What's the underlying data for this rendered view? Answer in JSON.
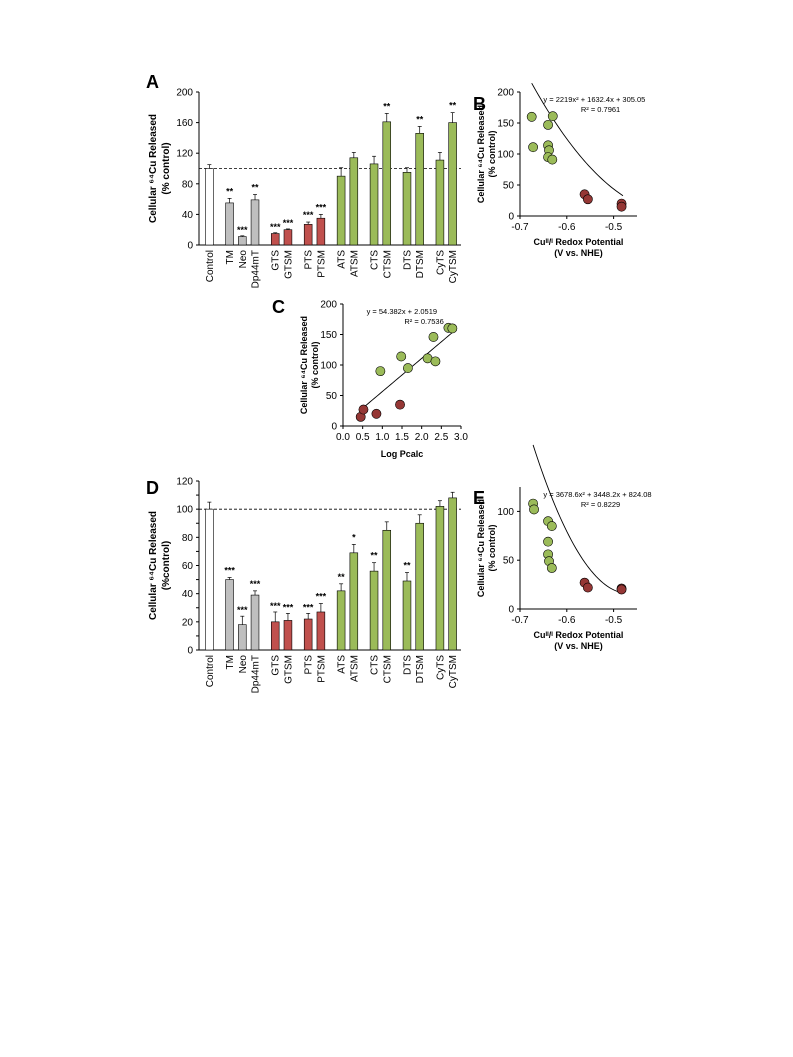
{
  "colors": {
    "gray": "#bfbfbf",
    "red": "#c0504d",
    "green": "#9bbb59",
    "white": "#ffffff",
    "stroke": "#000000",
    "red_point": "#953735",
    "green_point": "#9bbb59"
  },
  "panels": {
    "A": {
      "letter": "A",
      "ylabel_lines": [
        "Cellular ⁶⁴Cu Released",
        "(% control)"
      ]
    },
    "B": {
      "letter": "B",
      "ylabel_lines": [
        "Cellular ⁶⁴Cu Released",
        "(% control)"
      ],
      "xlabel_lines": [
        "Cuᴵᴵ/ᴵ Redox Potential",
        "(V vs. NHE)"
      ],
      "equation": "y = 2219x² + 1632.4x + 305.05",
      "r2": "R² = 0.7961"
    },
    "C": {
      "letter": "C",
      "ylabel_lines": [
        "Cellular ⁶⁴Cu Released",
        "(% control)"
      ],
      "xlabel": "Log Pcalc",
      "equation": "y = 54.382x + 2.0519",
      "r2": "R² = 0.7536"
    },
    "D": {
      "letter": "D",
      "ylabel_lines": [
        "Cellular ⁶⁴Cu Released",
        "(%control)"
      ]
    },
    "E": {
      "letter": "E",
      "ylabel_lines": [
        "Cellular ⁶⁴Cu Released",
        "(% control)"
      ],
      "xlabel_lines": [
        "Cuᴵᴵ/ᴵ Redox Potential",
        "(V vs. NHE)"
      ],
      "equation": "y = 3678.6x² + 3448.2x + 824.08",
      "r2": "R² = 0.8229"
    }
  },
  "chart_data": [
    {
      "panel": "A",
      "type": "bar",
      "ylim": [
        0,
        200
      ],
      "yticks": [
        0,
        40,
        80,
        120,
        160,
        200
      ],
      "reference_line": 100,
      "categories": [
        "Control",
        "TM",
        "Neo",
        "Dp44mT",
        "GTS",
        "GTSM",
        "PTS",
        "PTSM",
        "ATS",
        "ATSM",
        "CTS",
        "CTSM",
        "DTS",
        "DTSM",
        "CyTS",
        "CyTSM"
      ],
      "values": [
        100,
        55,
        11,
        59,
        15,
        20,
        27,
        35,
        90,
        114,
        106,
        161,
        95,
        146,
        111,
        160
      ],
      "errors": [
        5,
        6,
        1,
        7,
        1,
        1,
        3,
        5,
        11,
        7,
        10,
        11,
        6,
        9,
        10,
        13
      ],
      "groups": [
        "white",
        "gray",
        "gray",
        "gray",
        "red",
        "red",
        "red",
        "red",
        "green",
        "green",
        "green",
        "green",
        "green",
        "green",
        "green",
        "green"
      ],
      "significance": [
        "",
        "**",
        "***",
        "**",
        "***",
        "***",
        "***",
        "***",
        "",
        "",
        "",
        "**",
        "",
        "**",
        "",
        "**"
      ]
    },
    {
      "panel": "B",
      "type": "scatter",
      "xlim": [
        -0.7,
        -0.45
      ],
      "xticks": [
        -0.7,
        -0.6,
        -0.5
      ],
      "ylim": [
        0,
        200
      ],
      "yticks": [
        0,
        50,
        100,
        150,
        200
      ],
      "points": [
        {
          "x": -0.675,
          "y": 160,
          "group": "green"
        },
        {
          "x": -0.672,
          "y": 111,
          "group": "green"
        },
        {
          "x": -0.64,
          "y": 147,
          "group": "green"
        },
        {
          "x": -0.63,
          "y": 161,
          "group": "green"
        },
        {
          "x": -0.64,
          "y": 114,
          "group": "green"
        },
        {
          "x": -0.638,
          "y": 106,
          "group": "green"
        },
        {
          "x": -0.64,
          "y": 95,
          "group": "green"
        },
        {
          "x": -0.631,
          "y": 91,
          "group": "green"
        },
        {
          "x": -0.562,
          "y": 35,
          "group": "red"
        },
        {
          "x": -0.555,
          "y": 27,
          "group": "red"
        },
        {
          "x": -0.483,
          "y": 20,
          "group": "red"
        },
        {
          "x": -0.483,
          "y": 15,
          "group": "red"
        }
      ],
      "fit": {
        "kind": "poly2",
        "a": 2219,
        "b": 1632.4,
        "c": 305.05,
        "xrange": [
          -0.675,
          -0.48
        ]
      }
    },
    {
      "panel": "C",
      "type": "scatter",
      "xlim": [
        0,
        3
      ],
      "xticks": [
        0.0,
        0.5,
        1.0,
        1.5,
        2.0,
        2.5,
        3.0
      ],
      "ylim": [
        0,
        200
      ],
      "yticks": [
        0,
        50,
        100,
        150,
        200
      ],
      "points": [
        {
          "x": 0.95,
          "y": 90,
          "group": "green"
        },
        {
          "x": 1.48,
          "y": 114,
          "group": "green"
        },
        {
          "x": 1.65,
          "y": 95,
          "group": "green"
        },
        {
          "x": 2.15,
          "y": 111,
          "group": "green"
        },
        {
          "x": 2.3,
          "y": 146,
          "group": "green"
        },
        {
          "x": 2.35,
          "y": 106,
          "group": "green"
        },
        {
          "x": 2.68,
          "y": 161,
          "group": "green"
        },
        {
          "x": 2.78,
          "y": 160,
          "group": "green"
        },
        {
          "x": 0.45,
          "y": 15,
          "group": "red"
        },
        {
          "x": 0.52,
          "y": 27,
          "group": "red"
        },
        {
          "x": 0.85,
          "y": 20,
          "group": "red"
        },
        {
          "x": 1.45,
          "y": 35,
          "group": "red"
        }
      ],
      "fit": {
        "kind": "linear",
        "m": 54.382,
        "b": 2.0519,
        "xrange": [
          0.45,
          2.8
        ]
      }
    },
    {
      "panel": "D",
      "type": "bar",
      "ylim": [
        0,
        120
      ],
      "yticks": [
        0,
        10,
        20,
        30,
        40,
        50,
        60,
        70,
        80,
        90,
        100,
        110,
        120
      ],
      "ytick_labels": [
        0,
        20,
        40,
        60,
        80,
        100,
        120
      ],
      "reference_line": 100,
      "categories": [
        "Control",
        "TM",
        "Neo",
        "Dp44mT",
        "GTS",
        "GTSM",
        "PTS",
        "PTSM",
        "ATS",
        "ATSM",
        "CTS",
        "CTSM",
        "DTS",
        "DTSM",
        "CyTS",
        "CyTSM"
      ],
      "values": [
        100,
        50,
        18,
        39,
        20,
        21,
        22,
        27,
        42,
        69,
        56,
        85,
        49,
        90,
        102,
        108
      ],
      "errors": [
        5,
        1.5,
        6,
        3,
        7,
        5,
        4,
        6,
        5,
        6,
        6,
        6,
        6,
        6,
        4,
        4
      ],
      "groups": [
        "white",
        "gray",
        "gray",
        "gray",
        "red",
        "red",
        "red",
        "red",
        "green",
        "green",
        "green",
        "green",
        "green",
        "green",
        "green",
        "green"
      ],
      "significance": [
        "",
        "***",
        "***",
        "***",
        "***",
        "***",
        "***",
        "***",
        "**",
        "*",
        "**",
        "",
        "**",
        "",
        "",
        ""
      ]
    },
    {
      "panel": "E",
      "type": "scatter",
      "xlim": [
        -0.7,
        -0.45
      ],
      "xticks": [
        -0.7,
        -0.6,
        -0.5
      ],
      "ylim": [
        0,
        125
      ],
      "yticks": [
        0,
        50,
        100
      ],
      "points": [
        {
          "x": -0.672,
          "y": 108,
          "group": "green"
        },
        {
          "x": -0.67,
          "y": 102,
          "group": "green"
        },
        {
          "x": -0.64,
          "y": 90,
          "group": "green"
        },
        {
          "x": -0.632,
          "y": 85,
          "group": "green"
        },
        {
          "x": -0.64,
          "y": 69,
          "group": "green"
        },
        {
          "x": -0.64,
          "y": 56,
          "group": "green"
        },
        {
          "x": -0.638,
          "y": 49,
          "group": "green"
        },
        {
          "x": -0.632,
          "y": 42,
          "group": "green"
        },
        {
          "x": -0.562,
          "y": 27,
          "group": "red"
        },
        {
          "x": -0.555,
          "y": 22,
          "group": "red"
        },
        {
          "x": -0.483,
          "y": 21,
          "group": "red"
        },
        {
          "x": -0.483,
          "y": 20,
          "group": "red"
        }
      ],
      "fit": {
        "kind": "poly2",
        "a": 3678.6,
        "b": 3448.2,
        "c": 824.08,
        "xrange": [
          -0.672,
          -0.48
        ]
      }
    }
  ]
}
